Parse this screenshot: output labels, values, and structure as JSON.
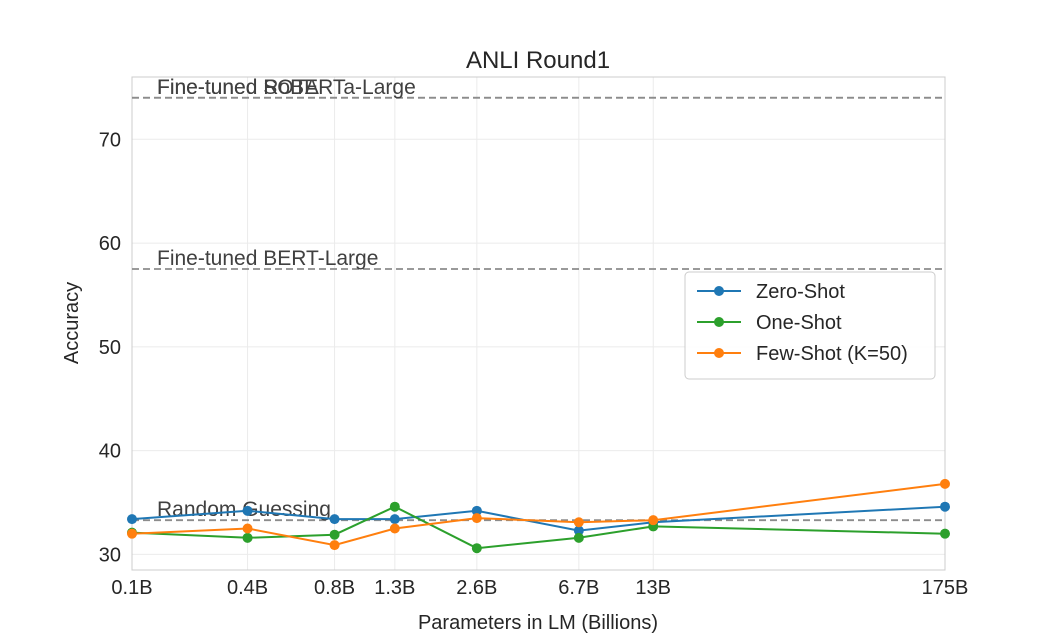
{
  "chart_data": {
    "type": "line",
    "title": "ANLI Round1",
    "xlabel": "Parameters in LM (Billions)",
    "ylabel": "Accuracy",
    "categories": [
      "0.1B",
      "0.4B",
      "0.8B",
      "1.3B",
      "2.6B",
      "6.7B",
      "13B",
      "175B"
    ],
    "x": [
      0.125,
      0.35,
      0.76,
      1.3,
      2.7,
      6.7,
      13,
      175
    ],
    "x_scale": "log",
    "xlim": [
      0.125,
      175
    ],
    "ylim": [
      28.5,
      76
    ],
    "yticks": [
      30,
      40,
      50,
      60,
      70
    ],
    "grid": true,
    "legend_position": "right",
    "series": [
      {
        "name": "Zero-Shot",
        "color": "#1f77b4",
        "values": [
          33.4,
          34.2,
          33.4,
          33.4,
          34.2,
          32.3,
          33.1,
          34.6
        ]
      },
      {
        "name": "One-Shot",
        "color": "#2ca02c",
        "values": [
          32.1,
          31.6,
          31.9,
          34.6,
          30.6,
          31.6,
          32.7,
          32.0
        ]
      },
      {
        "name": "Few-Shot (K=50)",
        "color": "#ff7f0e",
        "values": [
          32.0,
          32.5,
          30.9,
          32.5,
          33.5,
          33.1,
          33.3,
          36.8
        ]
      }
    ],
    "reference_lines": [
      {
        "label": "Fine-tuned SOTA",
        "value": 74.0
      },
      {
        "label": "Fine-tuned RoBERTa-Large",
        "value": 74.0
      },
      {
        "label": "Fine-tuned BERT-Large",
        "value": 57.5
      },
      {
        "label": "Random Guessing",
        "value": 33.3
      }
    ]
  }
}
